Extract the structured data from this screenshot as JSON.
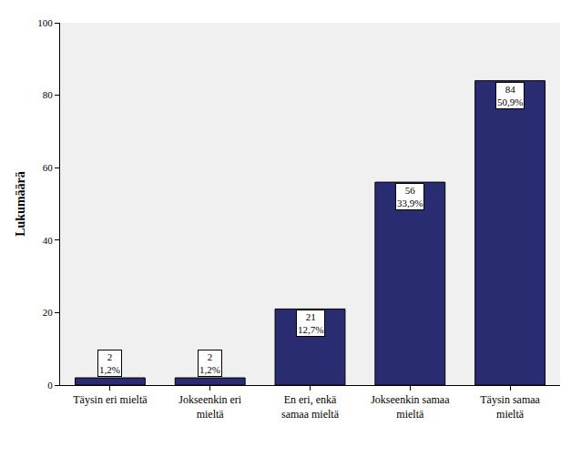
{
  "chart_data": {
    "type": "bar",
    "ylabel": "Lukumäärä",
    "categories": [
      "Täysin eri mieltä",
      "Jokseenkin eri mieltä",
      "En eri, enkä samaa mieltä",
      "Jokseenkin samaa mieltä",
      "Täysin samaa mieltä"
    ],
    "values": [
      2,
      2,
      21,
      56,
      84
    ],
    "value_labels": [
      "2\n1,2%",
      "2\n1,2%",
      "21\n12,7%",
      "56\n33,9%",
      "84\n50,9%"
    ],
    "data_labels": true,
    "color": "#2a2c72",
    "ylim": [
      0,
      100
    ],
    "yticks": [
      0,
      20,
      40,
      60,
      80,
      100
    ],
    "grid": false
  }
}
